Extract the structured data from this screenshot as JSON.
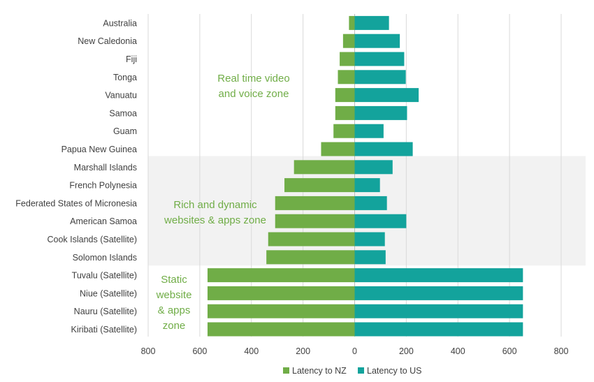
{
  "chart_data": {
    "type": "bar",
    "orientation": "horizontal-diverging",
    "categories": [
      "Australia",
      "New Caledonia",
      "Fiji",
      "Tonga",
      "Vanuatu",
      "Samoa",
      "Guam",
      "Papua New Guinea",
      "Marshall Islands",
      "French Polynesia",
      "Federated States of Micronesia",
      "American Samoa",
      "Cook Islands (Satellite)",
      "Solomon Islands",
      "Tuvalu (Satellite)",
      "Niue (Satellite)",
      "Nauru (Satellite)",
      "Kiribati (Satellite)"
    ],
    "series": [
      {
        "name": "Latency to NZ",
        "color": "#70ad47",
        "values": [
          22,
          45,
          58,
          65,
          75,
          75,
          82,
          130,
          235,
          272,
          308,
          308,
          335,
          342,
          570,
          570,
          570,
          570
        ]
      },
      {
        "name": "Latency to US",
        "color": "#13a39c",
        "values": [
          133,
          175,
          192,
          198,
          248,
          203,
          112,
          225,
          147,
          98,
          125,
          200,
          117,
          120,
          652,
          652,
          652,
          652
        ]
      }
    ],
    "xlim": [
      -800,
      800
    ],
    "tick_values": [
      -800,
      -600,
      -400,
      -200,
      0,
      200,
      400,
      600,
      800
    ],
    "tick_labels": [
      "800",
      "600",
      "400",
      "200",
      "0",
      "200",
      "400",
      "600",
      "800"
    ],
    "grid": "vertical",
    "legend_position": "bottom",
    "zones": [
      {
        "label_lines": [
          "Real time video",
          "and voice zone"
        ],
        "first": 0,
        "last": 7,
        "shaded": false
      },
      {
        "label_lines": [
          "Rich and dynamic",
          "websites & apps zone"
        ],
        "first": 8,
        "last": 13,
        "shaded": true
      },
      {
        "label_lines": [
          "Static",
          "website",
          "& apps",
          "zone"
        ],
        "first": 14,
        "last": 17,
        "shaded": false
      }
    ]
  }
}
